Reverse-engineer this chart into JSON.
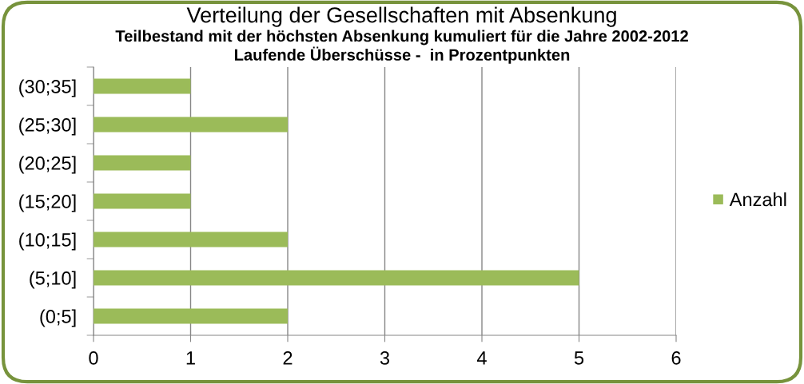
{
  "chart_data": {
    "type": "bar",
    "orientation": "horizontal",
    "title": "Verteilung der Gesellschaften mit Absenkung",
    "subtitle": "Teilbestand mit der höchsten Absenkung kumuliert für die Jahre 2002-2012\nLaufende Überschüsse -  in Prozentpunkten",
    "categories": [
      "(30;35]",
      "(25;30]",
      "(20;25]",
      "(15;20]",
      "(10;15]",
      "(5;10]",
      "(0;5]"
    ],
    "series": [
      {
        "name": "Anzahl",
        "color": "#9bbb59",
        "values": [
          1,
          2,
          1,
          1,
          2,
          5,
          2
        ]
      }
    ],
    "xlim": [
      0,
      6
    ],
    "xticks": [
      0,
      1,
      2,
      3,
      4,
      5,
      6
    ],
    "grid": "x",
    "legend": "right"
  }
}
